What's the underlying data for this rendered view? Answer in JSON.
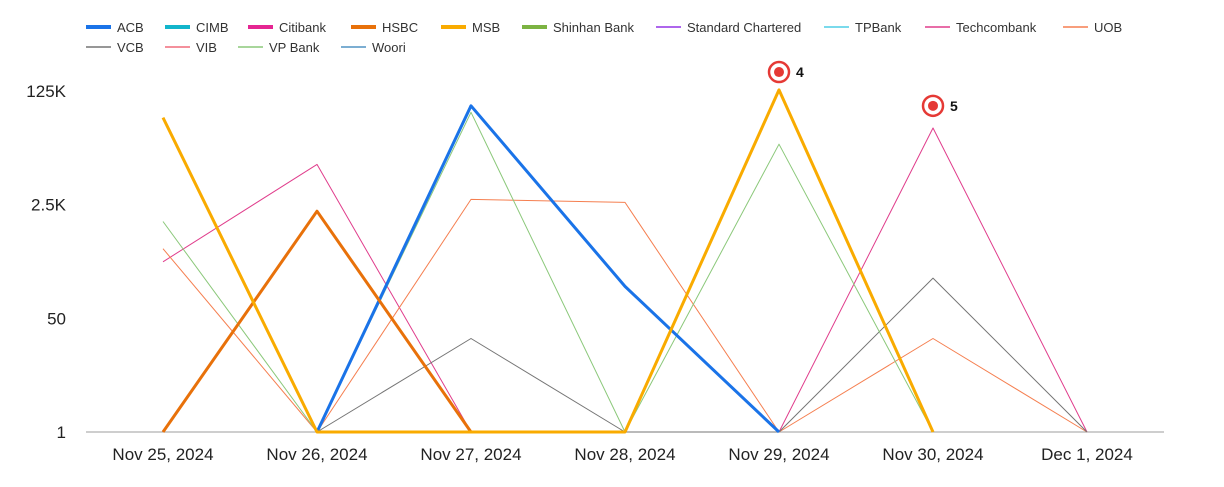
{
  "chart_data": {
    "type": "line",
    "y_scale": "log",
    "y_ticks": [
      {
        "value": 1,
        "label": "1"
      },
      {
        "value": 50,
        "label": "50"
      },
      {
        "value": 2500,
        "label": "2.5K"
      },
      {
        "value": 125000,
        "label": "125K"
      }
    ],
    "categories": [
      "Nov 25, 2024",
      "Nov 26, 2024",
      "Nov 27, 2024",
      "Nov 28, 2024",
      "Nov 29, 2024",
      "Nov 30, 2024",
      "Dec 1, 2024"
    ],
    "legend_position": "top-left",
    "grid": false,
    "series": [
      {
        "name": "ACB",
        "color": "#1a73e8",
        "width": 3,
        "values": [
          null,
          1,
          75000,
          150,
          1,
          null,
          null
        ]
      },
      {
        "name": "CIMB",
        "color": "#12b5cb",
        "width": 3,
        "values": [
          null,
          null,
          null,
          null,
          null,
          null,
          null
        ]
      },
      {
        "name": "Citibank",
        "color": "#e52592",
        "width": 3,
        "values": [
          null,
          null,
          null,
          null,
          null,
          null,
          null
        ]
      },
      {
        "name": "HSBC",
        "color": "#e8710a",
        "width": 3,
        "values": [
          1,
          2000,
          1,
          null,
          null,
          null,
          null
        ]
      },
      {
        "name": "MSB",
        "color": "#f9ab00",
        "width": 3,
        "values": [
          50000,
          1,
          null,
          1,
          130000,
          1,
          null
        ]
      },
      {
        "name": "Shinhan Bank",
        "color": "#7cb342",
        "width": 3,
        "values": [
          null,
          null,
          null,
          null,
          null,
          null,
          null
        ]
      },
      {
        "name": "Standard Chartered",
        "color": "#9334e6",
        "width": 1,
        "values": [
          null,
          null,
          null,
          null,
          null,
          null,
          null
        ]
      },
      {
        "name": "TPBank",
        "color": "#4ecde6",
        "width": 1,
        "values": [
          null,
          null,
          null,
          null,
          null,
          null,
          null
        ]
      },
      {
        "name": "Techcombank",
        "color": "#e03d8c",
        "width": 1,
        "values": [
          350,
          10000,
          1,
          null,
          1,
          35000,
          1
        ]
      },
      {
        "name": "UOB",
        "color": "#f57f50",
        "width": 1,
        "values": [
          550,
          1,
          3000,
          2700,
          1,
          25,
          1
        ]
      },
      {
        "name": "VCB",
        "color": "#757575",
        "width": 1,
        "values": [
          null,
          1,
          25,
          1,
          1,
          200,
          1
        ]
      },
      {
        "name": "VIB",
        "color": "#f06b7c",
        "width": 1,
        "values": [
          null,
          null,
          null,
          null,
          null,
          null,
          null
        ]
      },
      {
        "name": "VP Bank",
        "color": "#8bc87a",
        "width": 1,
        "values": [
          1400,
          1,
          60000,
          1,
          20000,
          1,
          null
        ]
      },
      {
        "name": "Woori",
        "color": "#5093c4",
        "width": 1,
        "values": [
          null,
          null,
          null,
          null,
          null,
          null,
          null
        ]
      }
    ],
    "annotations": [
      {
        "label": "4",
        "category_index": 4,
        "value": 240000
      },
      {
        "label": "5",
        "category_index": 5,
        "value": 75000
      }
    ],
    "annotation_color": "#e53935"
  }
}
